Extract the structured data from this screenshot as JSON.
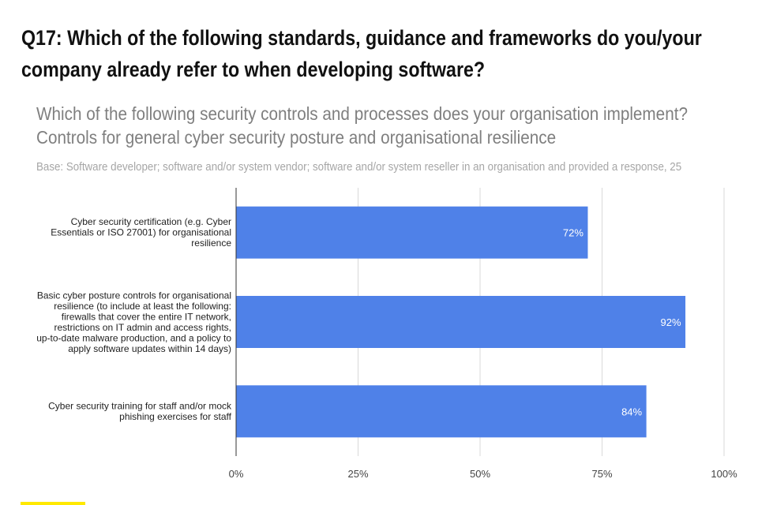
{
  "page": {
    "title": "Q17: Which of the following standards, guidance and frameworks do you/your company already refer to when developing software?",
    "accent_color": "#ffe900"
  },
  "chart_data": {
    "type": "bar",
    "orientation": "horizontal",
    "title_lines": [
      "Which of the following security controls and processes does your organisation implement?",
      "Controls for general cyber security posture and organisational resilience"
    ],
    "subtitle": "Base: Software developer; software and/or system vendor; software and/or system reseller in an organisation and provided a response, 25",
    "categories": [
      [
        "Cyber security certification (e.g. Cyber",
        "Essentials or ISO 27001) for organisational",
        "resilience"
      ],
      [
        "Basic cyber posture controls for organisational",
        "resilience (to include at least the following:",
        "firewalls that cover the entire IT network,",
        "restrictions on IT admin and access rights,",
        "up-to-date malware production, and a policy to",
        "apply software updates within 14 days)"
      ],
      [
        "Cyber security training for staff and/or mock",
        "phishing exercises for staff"
      ]
    ],
    "values": [
      72,
      92,
      84
    ],
    "data_labels": [
      "72%",
      "92%",
      "84%"
    ],
    "xlim": [
      0,
      100
    ],
    "x_ticks": [
      "0%",
      "25%",
      "50%",
      "75%",
      "100%"
    ],
    "grid": true,
    "bar_color": "#4f81e8",
    "label_color": "#ffffff",
    "grid_color": "#d9d9d9"
  }
}
